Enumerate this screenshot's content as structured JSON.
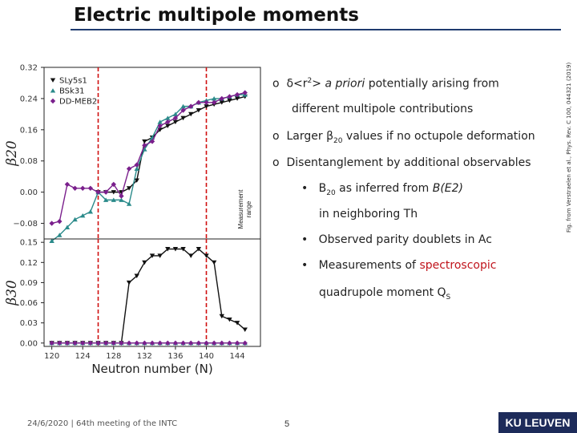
{
  "slide": {
    "title": "Electric multipole moments",
    "side_reference": "Fig. from Verstraelen et al., Phys. Rev. C 100, 044321 (2019)",
    "footer": "24/6/2020 | 64th meeting of the INTC",
    "page_number": "5",
    "logo": "KU LEUVEN"
  },
  "measurement_label": {
    "line1": "Measurement",
    "line2": "range"
  },
  "bullets": {
    "b1_marker": "o",
    "b1_pre": "δ<r",
    "b1_sup": "2",
    "b1_mid": "> ",
    "b1_italic": "a priori",
    "b1_post": " potentially arising from",
    "b1_line2": "different multipole contributions",
    "b2_marker": "o",
    "b2_pre": "Larger β",
    "b2_sub": "20",
    "b2_post": " values if no octupole deformation",
    "b3_marker": "o",
    "b3_text": "Disentanglement by additional observables",
    "s1_marker": "•",
    "s1_pre": "B",
    "s1_sub": "20",
    "s1_mid": " as inferred from ",
    "s1_italic": "B(E2)",
    "s1_line2": "in neighboring Th",
    "s2_marker": "•",
    "s2_text": "Observed parity doublets in Ac",
    "s3_marker": "•",
    "s3_pre": "Measurements of ",
    "s3_red": "spectroscopic",
    "s3_line2_pre": "quadrupole moment Q",
    "s3_line2_sub": "S"
  },
  "chart_data": [
    {
      "type": "line",
      "ylabel": "β20",
      "xlim": [
        119,
        147
      ],
      "ylim": [
        -0.12,
        0.32
      ],
      "yticks": [
        -0.08,
        0.0,
        0.08,
        0.16,
        0.24,
        0.32
      ],
      "ytick_labels": [
        "−0.08",
        "0.00",
        "0.08",
        "0.16",
        "0.24",
        "0.32"
      ],
      "measurement_range": [
        126,
        140
      ],
      "colors": {
        "SLy5s1": "#111111",
        "BSk31": "#2a8a8a",
        "DD-MEB2": "#7a1f8c"
      },
      "series": [
        {
          "name": "SLy5s1",
          "marker": "triangle-down",
          "x": [
            126,
            127,
            128,
            129,
            130,
            131,
            132,
            133,
            134,
            135,
            136,
            137,
            138,
            139,
            140,
            141,
            142,
            143,
            144,
            145
          ],
          "y": [
            0.0,
            0.0,
            0.0,
            0.0,
            0.01,
            0.03,
            0.13,
            0.14,
            0.16,
            0.17,
            0.18,
            0.19,
            0.2,
            0.21,
            0.22,
            0.225,
            0.23,
            0.235,
            0.24,
            0.245
          ]
        },
        {
          "name": "BSk31",
          "marker": "triangle-up",
          "x": [
            120,
            121,
            122,
            123,
            124,
            125,
            126,
            127,
            128,
            129,
            130,
            131,
            132,
            133,
            134,
            135,
            136,
            137,
            138,
            139,
            140,
            141,
            142,
            143,
            144,
            145
          ],
          "y": [
            -0.125,
            -0.11,
            -0.09,
            -0.07,
            -0.06,
            -0.05,
            0.0,
            -0.02,
            -0.02,
            -0.02,
            -0.03,
            0.06,
            0.11,
            0.14,
            0.18,
            0.19,
            0.2,
            0.22,
            0.22,
            0.23,
            0.235,
            0.24,
            0.24,
            0.245,
            0.25,
            0.25
          ]
        },
        {
          "name": "DD-MEB2",
          "marker": "diamond",
          "x": [
            120,
            121,
            122,
            123,
            124,
            125,
            126,
            127,
            128,
            129,
            130,
            131,
            132,
            133,
            134,
            135,
            136,
            137,
            138,
            139,
            140,
            141,
            142,
            143,
            144,
            145
          ],
          "y": [
            -0.08,
            -0.075,
            0.02,
            0.01,
            0.01,
            0.01,
            0.0,
            0.0,
            0.02,
            -0.01,
            0.06,
            0.07,
            0.12,
            0.13,
            0.17,
            0.18,
            0.19,
            0.21,
            0.22,
            0.23,
            0.23,
            0.23,
            0.24,
            0.245,
            0.25,
            0.255
          ]
        }
      ]
    },
    {
      "type": "line",
      "ylabel": "β30",
      "xlabel": "Neutron number (N)",
      "xlim": [
        119,
        147
      ],
      "ylim": [
        -0.005,
        0.155
      ],
      "yticks": [
        0.0,
        0.03,
        0.06,
        0.09,
        0.12,
        0.15
      ],
      "ytick_labels": [
        "0.00",
        "0.03",
        "0.06",
        "0.09",
        "0.12",
        "0.15"
      ],
      "xticks": [
        120,
        124,
        128,
        132,
        136,
        140,
        144
      ],
      "xtick_labels": [
        "120",
        "124",
        "128",
        "132",
        "136",
        "140",
        "144"
      ],
      "measurement_range": [
        126,
        140
      ],
      "series": [
        {
          "name": "SLy5s1",
          "marker": "triangle-down",
          "x": [
            120,
            121,
            122,
            123,
            124,
            125,
            126,
            127,
            128,
            129,
            130,
            131,
            132,
            133,
            134,
            135,
            136,
            137,
            138,
            139,
            140,
            141,
            142,
            143,
            144,
            145
          ],
          "y": [
            0,
            0,
            0,
            0,
            0,
            0,
            0,
            0,
            0,
            0,
            0.09,
            0.1,
            0.12,
            0.13,
            0.13,
            0.14,
            0.14,
            0.14,
            0.13,
            0.14,
            0.13,
            0.12,
            0.04,
            0.035,
            0.03,
            0.02
          ]
        },
        {
          "name": "BSk31",
          "marker": "triangle-up",
          "x": [
            120,
            121,
            122,
            123,
            124,
            125,
            126,
            127,
            128,
            129,
            130,
            131,
            132,
            133,
            134,
            135,
            136,
            137,
            138,
            139,
            140,
            141,
            142,
            143,
            144,
            145
          ],
          "y": [
            0,
            0,
            0,
            0,
            0,
            0,
            0,
            0,
            0,
            0,
            0,
            0,
            0,
            0,
            0,
            0,
            0,
            0,
            0,
            0,
            0,
            0,
            0,
            0,
            0,
            0
          ]
        },
        {
          "name": "DD-MEB2",
          "marker": "diamond",
          "x": [
            120,
            121,
            122,
            123,
            124,
            125,
            126,
            127,
            128,
            129,
            130,
            131,
            132,
            133,
            134,
            135,
            136,
            137,
            138,
            139,
            140,
            141,
            142,
            143,
            144,
            145
          ],
          "y": [
            0,
            0,
            0,
            0,
            0,
            0,
            0,
            0,
            0,
            0,
            0,
            0,
            0,
            0,
            0,
            0,
            0,
            0,
            0,
            0,
            0,
            0,
            0,
            0,
            0,
            0
          ]
        }
      ]
    }
  ]
}
